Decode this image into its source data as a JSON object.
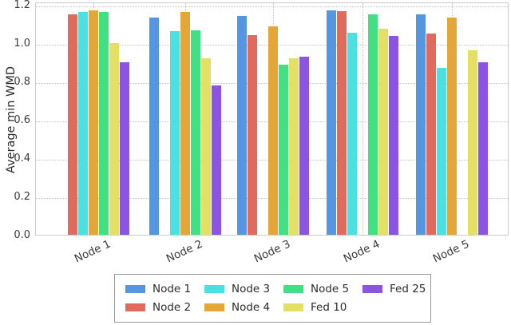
{
  "figure": {
    "background_color": "#ffffff",
    "grid_color": "#c2c2c2",
    "spine_color": "#cccccc",
    "text_color": "#2b2b2b"
  },
  "chart_data": {
    "type": "bar",
    "title": "",
    "xlabel": "",
    "ylabel": "Average min WMD",
    "categories": [
      "Node 1",
      "Node 2",
      "Node 3",
      "Node 4",
      "Node 5"
    ],
    "yticks": [
      0.0,
      0.2,
      0.4,
      0.6,
      0.8,
      1.0,
      1.2
    ],
    "ylim": [
      0,
      1.215
    ],
    "grid": "dotted horizontal at yticks and vertical at group centers, drawn behind bars",
    "note": "each category group omits the bar of its own series (Node N group has no Node N bar)",
    "series": [
      {
        "name": "Node 1",
        "color": "#5596E2",
        "values": [
          null,
          1.13,
          1.14,
          1.17,
          1.15
        ]
      },
      {
        "name": "Node 2",
        "color": "#E16A5F",
        "values": [
          1.15,
          null,
          1.04,
          1.165,
          1.05
        ]
      },
      {
        "name": "Node 3",
        "color": "#4BE0E2",
        "values": [
          1.16,
          1.06,
          null,
          1.055,
          0.87
        ]
      },
      {
        "name": "Node 4",
        "color": "#E3A637",
        "values": [
          1.17,
          1.16,
          1.085,
          null,
          1.13
        ]
      },
      {
        "name": "Node 5",
        "color": "#41E083",
        "values": [
          1.16,
          1.065,
          0.885,
          1.15,
          null
        ]
      },
      {
        "name": "Fed 10",
        "color": "#E4E063",
        "values": [
          1.0,
          0.92,
          0.92,
          1.075,
          0.96
        ]
      },
      {
        "name": "Fed 25",
        "color": "#8B54E2",
        "values": [
          0.9,
          0.78,
          0.93,
          1.035,
          0.9
        ]
      }
    ],
    "legend": {
      "position": "bottom-center, boxed, 2 rows x 4 columns, column-major order",
      "labels": [
        "Node 1",
        "Node 2",
        "Node 3",
        "Node 4",
        "Node 5",
        "Fed 10",
        "Fed 25"
      ]
    }
  }
}
